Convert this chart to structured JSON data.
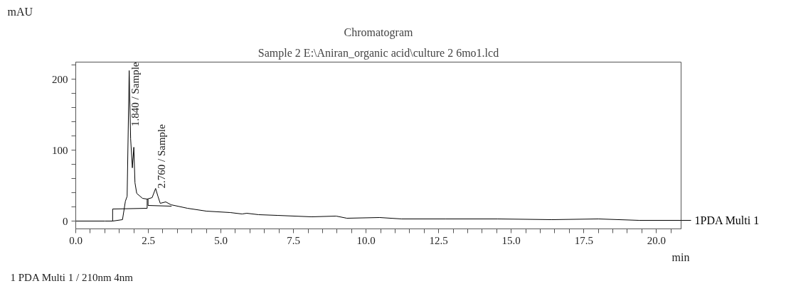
{
  "chart_data": {
    "type": "line",
    "title": "Chromatogram",
    "subtitle": "Sample 2 E:\\Aniran_organic acid\\culture 2 6mo1.lcd",
    "xlabel": "min",
    "ylabel": "mAU",
    "xlim": [
      0,
      20.85
    ],
    "ylim": [
      -11,
      224
    ],
    "xticks": [
      {
        "value": 0,
        "label": "0.0"
      },
      {
        "value": 0.5,
        "label": null
      },
      {
        "value": 1,
        "label": null
      },
      {
        "value": 1.5,
        "label": null
      },
      {
        "value": 2,
        "label": null
      },
      2.5,
      {
        "value": 3,
        "label": null
      },
      {
        "value": 3.5,
        "label": null
      },
      {
        "value": 4,
        "label": null
      },
      {
        "value": 4.5,
        "label": null
      },
      {
        "value": 5,
        "label": "5.0"
      },
      {
        "value": 5.5,
        "label": null
      },
      {
        "value": 6,
        "label": null
      },
      {
        "value": 6.5,
        "label": null
      },
      {
        "value": 7,
        "label": null
      },
      7.5,
      {
        "value": 8,
        "label": null
      },
      {
        "value": 8.5,
        "label": null
      },
      {
        "value": 9,
        "label": null
      },
      {
        "value": 9.5,
        "label": null
      },
      {
        "value": 10,
        "label": "10.0"
      },
      {
        "value": 10.5,
        "label": null
      },
      {
        "value": 11,
        "label": null
      },
      {
        "value": 11.5,
        "label": null
      },
      {
        "value": 12,
        "label": null
      },
      12.5,
      {
        "value": 13,
        "label": null
      },
      {
        "value": 13.5,
        "label": null
      },
      {
        "value": 14,
        "label": null
      },
      {
        "value": 14.5,
        "label": null
      },
      {
        "value": 15,
        "label": "15.0"
      },
      {
        "value": 15.5,
        "label": null
      },
      {
        "value": 16,
        "label": null
      },
      {
        "value": 16.5,
        "label": null
      },
      {
        "value": 17,
        "label": null
      },
      17.5,
      {
        "value": 18,
        "label": null
      },
      {
        "value": 18.5,
        "label": null
      },
      {
        "value": 19,
        "label": null
      },
      {
        "value": 19.5,
        "label": null
      },
      {
        "value": 20,
        "label": "20.0"
      },
      {
        "value": 20.5,
        "label": null
      }
    ],
    "yticks": [
      0,
      {
        "value": 20,
        "label": null
      },
      {
        "value": 40,
        "label": null
      },
      {
        "value": 60,
        "label": null
      },
      {
        "value": 80,
        "label": null
      },
      100,
      {
        "value": 120,
        "label": null
      },
      {
        "value": 140,
        "label": null
      },
      {
        "value": 160,
        "label": null
      },
      {
        "value": 180,
        "label": null
      },
      200,
      {
        "value": 220,
        "label": null
      }
    ],
    "grid": false,
    "marker": "none",
    "line_style": "solid",
    "series": [
      {
        "name": "1PDA Multi 1",
        "color": "#000000",
        "x": [
          0,
          1.0,
          1.27,
          1.61,
          1.71,
          1.77,
          1.84,
          1.89,
          1.95,
          2.0,
          2.04,
          2.1,
          2.3,
          2.46,
          2.63,
          2.75,
          2.83,
          2.91,
          3.1,
          3.28,
          3.85,
          4.5,
          5.32,
          5.73,
          5.89,
          6.3,
          6.95,
          8.12,
          8.97,
          9.34,
          10.47,
          11.23,
          12.73,
          14.52,
          16.4,
          18.0,
          19.41,
          20.85
        ],
        "values": [
          0,
          0,
          0,
          2,
          28,
          35,
          212,
          116,
          75,
          104,
          54,
          39,
          32,
          31,
          33,
          46,
          35,
          25,
          27,
          23,
          18,
          14,
          12,
          10,
          11,
          9,
          8,
          6,
          7,
          4,
          5,
          3,
          3,
          3,
          2,
          3,
          1,
          1
        ]
      },
      {
        "color": "#000000",
        "x": [
          1.27,
          1.27,
          2.46,
          2.46
        ],
        "values": [
          0,
          17,
          18,
          31
        ]
      },
      {
        "color": "#000000",
        "x": [
          2.49,
          2.49,
          3.3
        ],
        "values": [
          31,
          22,
          21
        ]
      }
    ],
    "annotations": [
      {
        "text": "1.840 / Sample",
        "x": 1.84,
        "y": 212
      },
      {
        "text": "2.760 / Sample",
        "x": 2.76,
        "y": 46
      },
      "1   PDA Multi 1 / 210nm 4nm"
    ]
  }
}
